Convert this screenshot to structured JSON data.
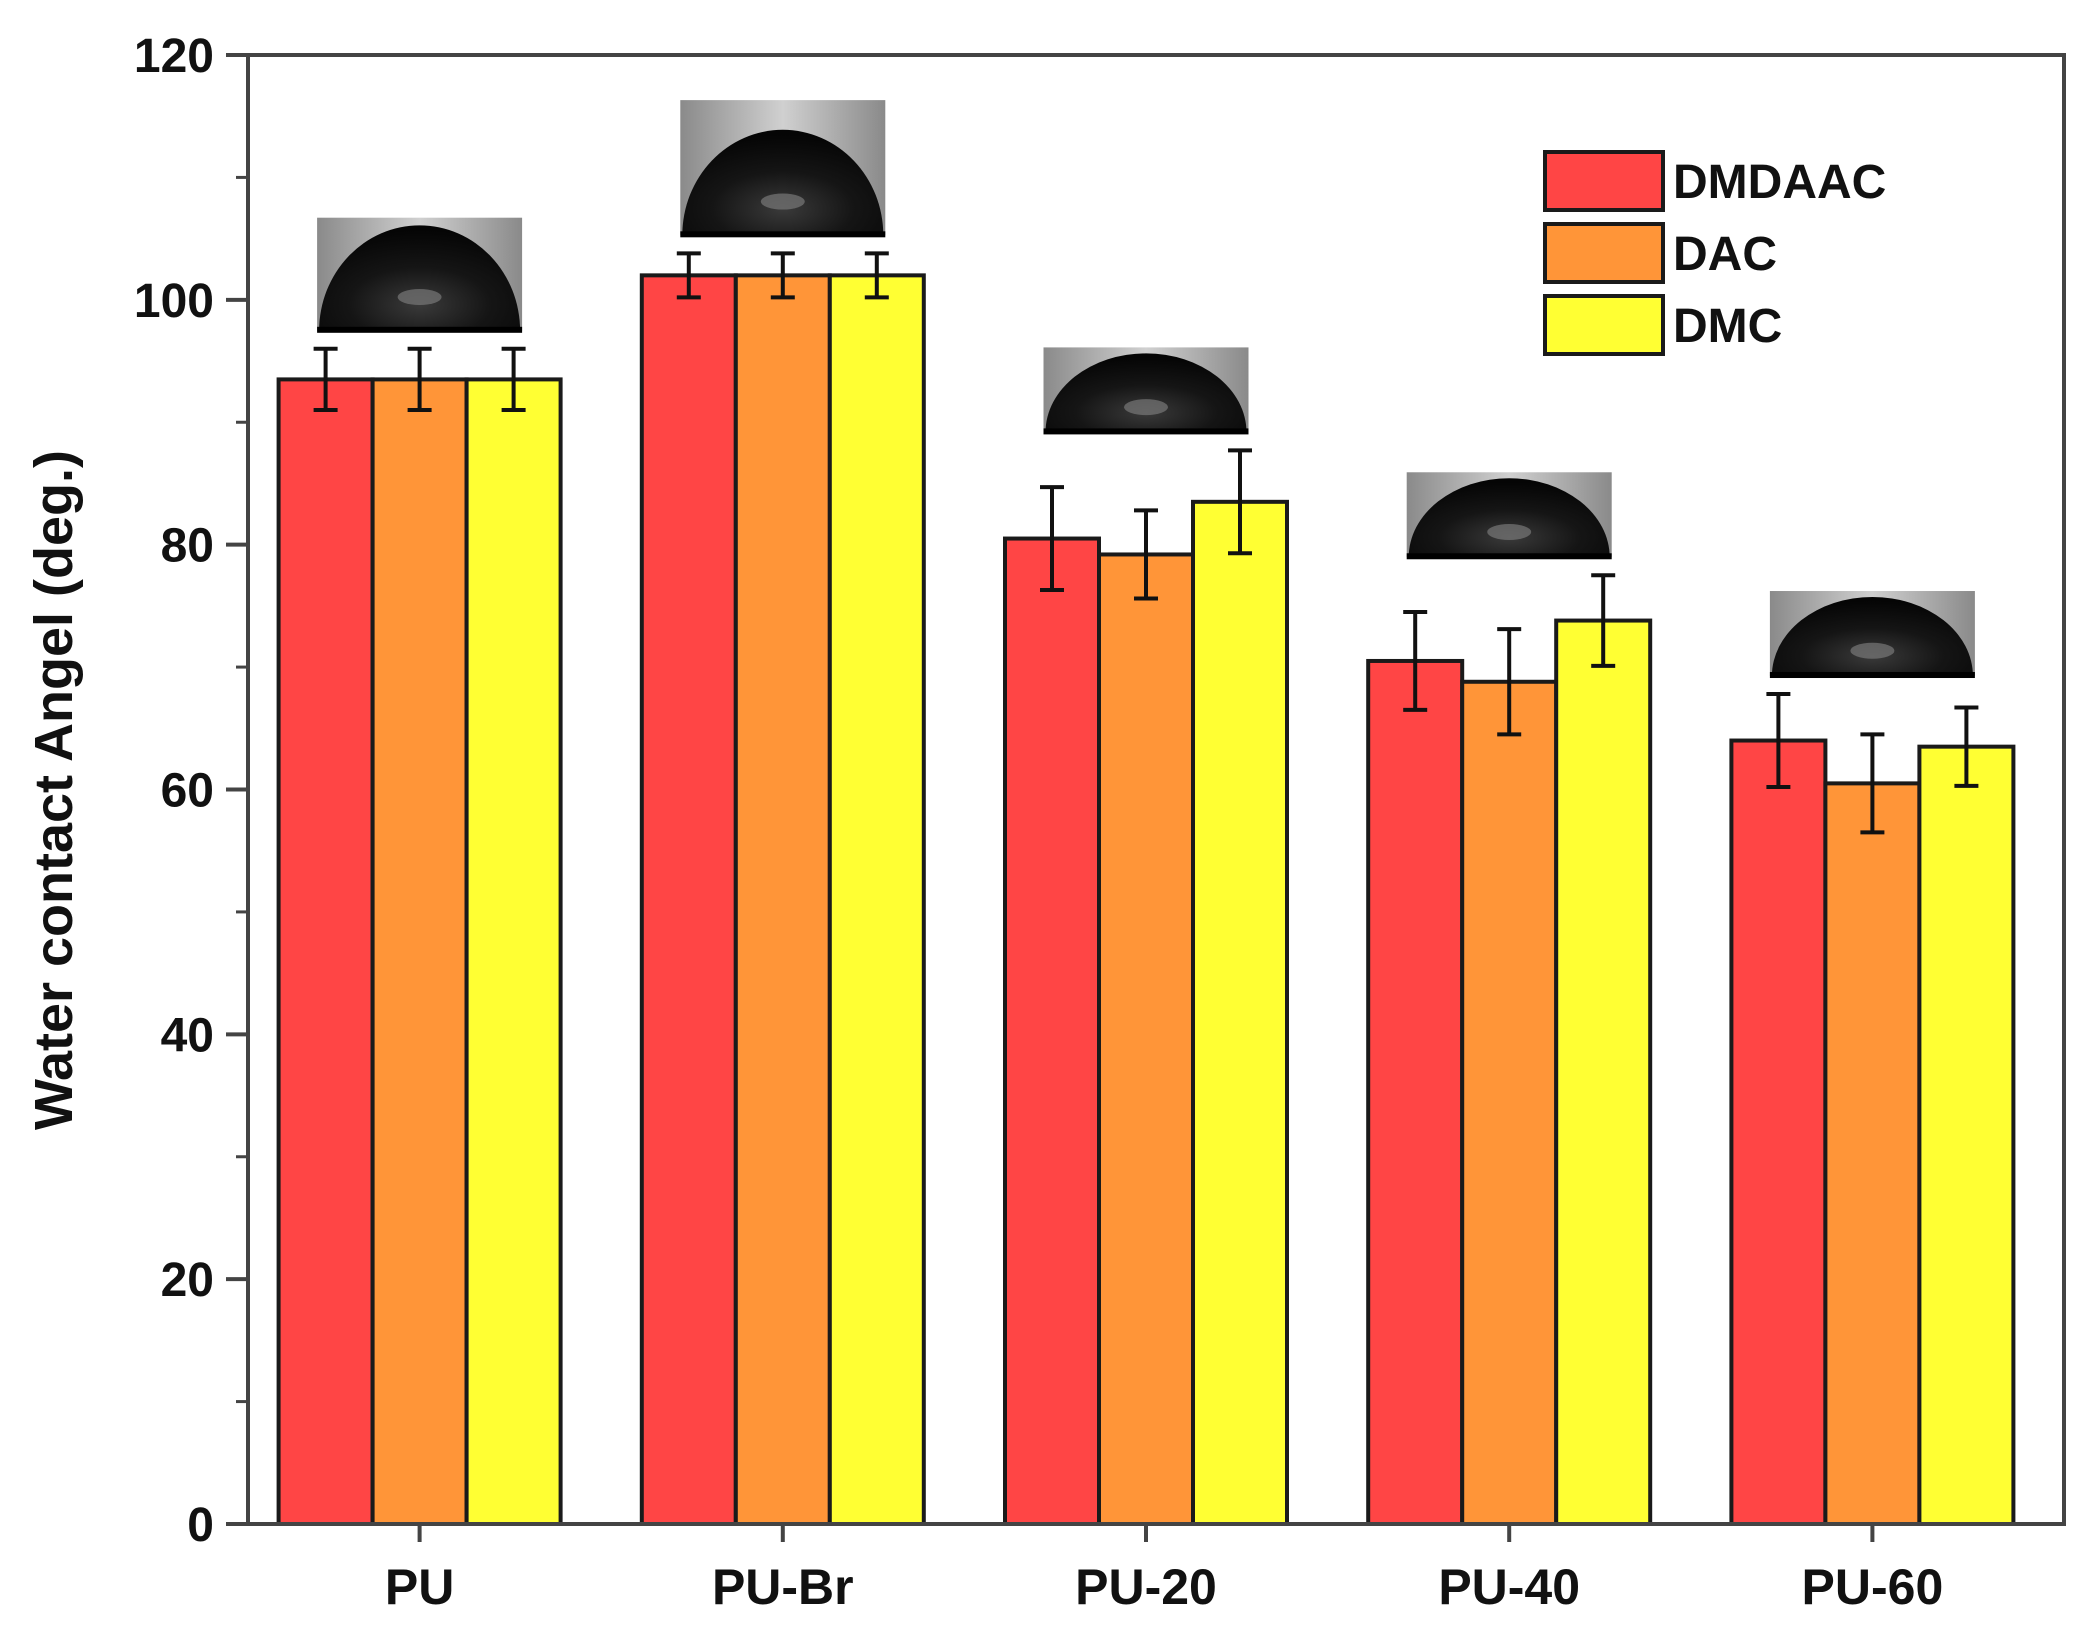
{
  "chart_data": {
    "type": "bar",
    "title": "",
    "xlabel": "",
    "ylabel": "Water contact Angel (deg.)",
    "ylim": [
      0,
      120
    ],
    "yticks": [
      0,
      20,
      40,
      60,
      80,
      100,
      120
    ],
    "grid": false,
    "legend_position": "top-right",
    "categories": [
      "PU",
      "PU-Br",
      "PU-20",
      "PU-40",
      "PU-60"
    ],
    "series": [
      {
        "name": "DMDAAC",
        "color": "#ff4545",
        "values": [
          93.5,
          102,
          80.5,
          70.5,
          64
        ],
        "errors": [
          2.5,
          1.8,
          4.2,
          4.0,
          3.8
        ]
      },
      {
        "name": "DAC",
        "color": "#ff9538",
        "values": [
          93.5,
          102,
          79.2,
          68.8,
          60.5
        ],
        "errors": [
          2.5,
          1.8,
          3.6,
          4.3,
          4.0
        ]
      },
      {
        "name": "DMC",
        "color": "#ffff33",
        "values": [
          93.5,
          102,
          83.5,
          73.8,
          63.5
        ],
        "errors": [
          2.5,
          1.8,
          4.2,
          3.7,
          3.2
        ]
      }
    ],
    "annotations": [
      "droplet photo above PU",
      "droplet photo above PU-Br",
      "droplet photo above PU-20",
      "droplet photo above PU-40",
      "droplet photo above PU-60"
    ]
  }
}
